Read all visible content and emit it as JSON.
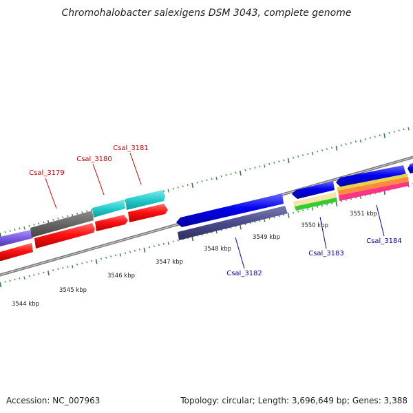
{
  "title": "Chromohalobacter salexigens DSM 3043, complete genome",
  "footer": {
    "accession": "Accession: NC_007963",
    "summary": "Topology: circular; Length: 3,696,649 bp; Genes: 3,388"
  },
  "ruler_labels": [
    "3544 kbp",
    "3545 kbp",
    "3546 kbp",
    "3547 kbp",
    "3548 kbp",
    "3549 kbp",
    "3550 kbp",
    "3551 kbp"
  ],
  "gene_labels": {
    "csal_3179": "Csal_3179",
    "csal_3180": "Csal_3180",
    "csal_3181": "Csal_3181",
    "csal_3182": "Csal_3182",
    "csal_3183": "Csal_3183",
    "csal_3184": "Csal_3184"
  },
  "colors": {
    "cds_blue": "#0000ee",
    "cds_red": "#ff1111",
    "cyan": "#22cccc",
    "dark_gray": "#666666",
    "slate": "#4a4a8c",
    "purple": "#7a5ce0",
    "label_red": "#cc0000",
    "label_blue": "#0000aa",
    "tick_green": "#2e7d32"
  }
}
